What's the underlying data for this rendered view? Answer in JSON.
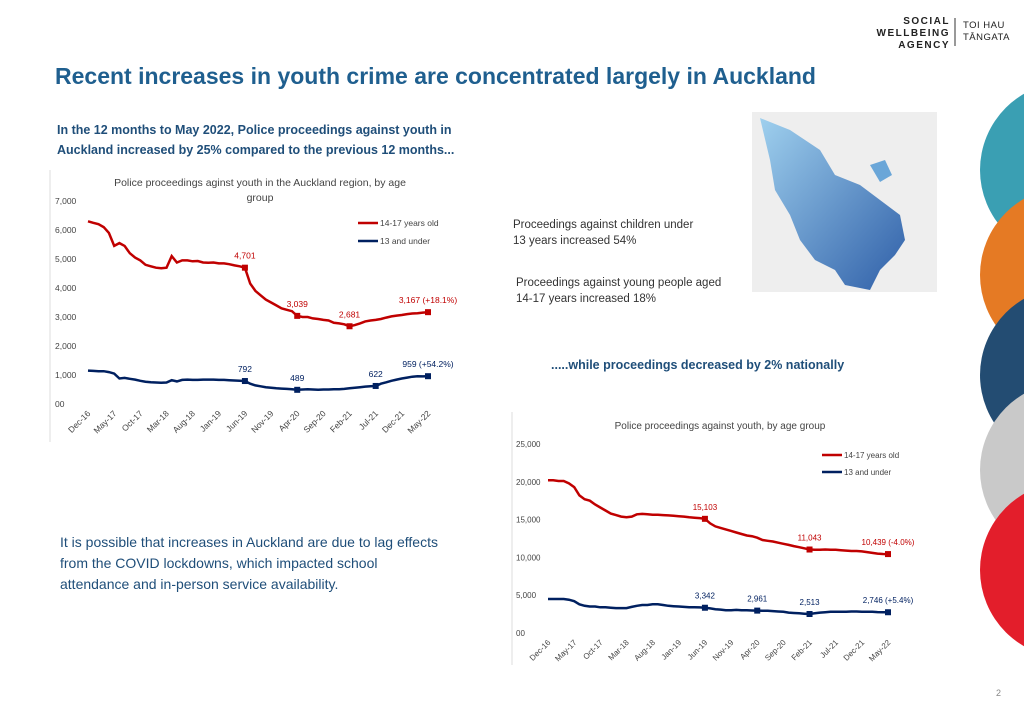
{
  "logo": {
    "name": [
      "SOCIAL",
      "WELLBEING",
      "AGENCY"
    ],
    "maori": [
      "TOI HAU",
      "TĀNGATA"
    ]
  },
  "title": "Recent increases in youth crime are concentrated largely in Auckland",
  "intro": "In the 12 months to May 2022, Police proceedings against youth in Auckland increased by 25% compared to the previous 12 months...",
  "annotations": {
    "children": "Proceedings against children under 13 years increased 54%",
    "young_people": "Proceedings against young people aged 14-17 years increased 18%",
    "national": ".....while proceedings decreased by 2% nationally"
  },
  "note": "It is possible that increases in Auckland are due to lag effects from the COVID lockdowns, which impacted school attendance and in-person service availability.",
  "page_number": "2",
  "chart_data": [
    {
      "type": "line",
      "title": "Police proceedings aginst youth in the Auckland region, by age group",
      "categories": [
        "Dec-16",
        null,
        null,
        null,
        null,
        "May-17",
        null,
        null,
        null,
        null,
        "Oct-17",
        null,
        null,
        null,
        null,
        "Mar-18",
        null,
        null,
        null,
        null,
        "Aug-18",
        null,
        null,
        null,
        null,
        "Jan-19",
        null,
        null,
        null,
        null,
        "Jun-19",
        null,
        null,
        null,
        null,
        "Nov-19",
        null,
        null,
        null,
        null,
        "Apr-20",
        null,
        null,
        null,
        null,
        "Sep-20",
        null,
        null,
        null,
        null,
        "Feb-21",
        null,
        null,
        null,
        null,
        "Jul-21",
        null,
        null,
        null,
        null,
        "Dec-21",
        null,
        null,
        null,
        null,
        "May-22"
      ],
      "ylim": [
        0,
        7000
      ],
      "yticks": [
        {
          "value": 0,
          "label": "00"
        },
        {
          "value": 1000,
          "label": "1,000"
        },
        {
          "value": 2000,
          "label": "2,000"
        },
        {
          "value": 3000,
          "label": "3,000"
        },
        {
          "value": 4000,
          "label": "4,000"
        },
        {
          "value": 5000,
          "label": "5,000"
        },
        {
          "value": 6000,
          "label": "6,000"
        },
        {
          "value": 7000,
          "label": "7,000"
        }
      ],
      "grid": false,
      "series": [
        {
          "name": "14-17 years old",
          "color": "#c00000",
          "values": [
            6300,
            6250,
            6200,
            6100,
            5900,
            5450,
            5550,
            5450,
            5200,
            5050,
            4950,
            4800,
            4750,
            4700,
            4680,
            4700,
            5100,
            4880,
            4950,
            4950,
            4920,
            4930,
            4880,
            4870,
            4880,
            4850,
            4850,
            4820,
            4780,
            4750,
            4701,
            4150,
            3900,
            3750,
            3600,
            3500,
            3400,
            3300,
            3250,
            3200,
            3039,
            3000,
            3000,
            2950,
            2930,
            2900,
            2880,
            2800,
            2780,
            2750,
            2681,
            2720,
            2780,
            2850,
            2880,
            2900,
            2930,
            2980,
            3020,
            3050,
            3070,
            3100,
            3120,
            3130,
            3150,
            3167
          ],
          "value_labels": [
            null,
            null,
            null,
            null,
            null,
            null,
            null,
            null,
            null,
            null,
            null,
            null,
            null,
            null,
            null,
            null,
            null,
            null,
            null,
            null,
            null,
            null,
            null,
            null,
            null,
            null,
            null,
            null,
            null,
            null,
            "4,701",
            null,
            null,
            null,
            null,
            null,
            null,
            null,
            null,
            null,
            "3,039",
            null,
            null,
            null,
            null,
            null,
            null,
            null,
            null,
            null,
            "2,681",
            null,
            null,
            null,
            null,
            null,
            null,
            null,
            null,
            null,
            null,
            null,
            null,
            null,
            null,
            "3,167 (+18.1%)"
          ]
        },
        {
          "name": "13 and under",
          "color": "#002060",
          "values": [
            1150,
            1140,
            1130,
            1130,
            1100,
            1050,
            880,
            900,
            870,
            840,
            800,
            770,
            750,
            740,
            730,
            740,
            820,
            780,
            830,
            840,
            830,
            830,
            840,
            840,
            840,
            830,
            830,
            820,
            810,
            800,
            792,
            700,
            640,
            610,
            580,
            560,
            540,
            530,
            520,
            510,
            489,
            500,
            510,
            500,
            490,
            500,
            500,
            510,
            510,
            520,
            540,
            560,
            580,
            600,
            610,
            622,
            700,
            750,
            800,
            840,
            880,
            910,
            940,
            960,
            950,
            959
          ],
          "value_labels": [
            null,
            null,
            null,
            null,
            null,
            null,
            null,
            null,
            null,
            null,
            null,
            null,
            null,
            null,
            null,
            null,
            null,
            null,
            null,
            null,
            null,
            null,
            null,
            null,
            null,
            null,
            null,
            null,
            null,
            null,
            "792",
            null,
            null,
            null,
            null,
            null,
            null,
            null,
            null,
            null,
            "489",
            null,
            null,
            null,
            null,
            null,
            null,
            null,
            null,
            null,
            null,
            null,
            null,
            null,
            null,
            "622",
            null,
            null,
            null,
            null,
            null,
            null,
            null,
            null,
            null,
            "959 (+54.2%)"
          ]
        }
      ]
    },
    {
      "type": "line",
      "title": "Police proceedings against youth, by age group",
      "categories": [
        "Dec-16",
        null,
        null,
        null,
        null,
        "May-17",
        null,
        null,
        null,
        null,
        "Oct-17",
        null,
        null,
        null,
        null,
        "Mar-18",
        null,
        null,
        null,
        null,
        "Aug-18",
        null,
        null,
        null,
        null,
        "Jan-19",
        null,
        null,
        null,
        null,
        "Jun-19",
        null,
        null,
        null,
        null,
        "Nov-19",
        null,
        null,
        null,
        null,
        "Apr-20",
        null,
        null,
        null,
        null,
        "Sep-20",
        null,
        null,
        null,
        null,
        "Feb-21",
        null,
        null,
        null,
        null,
        "Jul-21",
        null,
        null,
        null,
        null,
        "Dec-21",
        null,
        null,
        null,
        null,
        "May-22"
      ],
      "ylim": [
        0,
        25000
      ],
      "yticks": [
        {
          "value": 0,
          "label": "00"
        },
        {
          "value": 5000,
          "label": "5,000"
        },
        {
          "value": 10000,
          "label": "10,000"
        },
        {
          "value": 15000,
          "label": "15,000"
        },
        {
          "value": 20000,
          "label": "20,000"
        },
        {
          "value": 25000,
          "label": "25,000"
        }
      ],
      "grid": false,
      "series": [
        {
          "name": "14-17 years old",
          "color": "#c00000",
          "values": [
            20200,
            20200,
            20100,
            20100,
            19800,
            19300,
            18200,
            17700,
            17500,
            17000,
            16600,
            16200,
            15800,
            15600,
            15400,
            15300,
            15400,
            15700,
            15750,
            15700,
            15650,
            15650,
            15600,
            15550,
            15500,
            15450,
            15400,
            15300,
            15250,
            15200,
            15103,
            14500,
            14100,
            13900,
            13700,
            13500,
            13300,
            13100,
            12900,
            12800,
            12600,
            12300,
            12200,
            12100,
            11950,
            11800,
            11650,
            11500,
            11350,
            11200,
            11043,
            11000,
            11000,
            11050,
            11000,
            11000,
            10950,
            10900,
            10850,
            10850,
            10800,
            10700,
            10600,
            10500,
            10450,
            10439
          ],
          "value_labels": [
            null,
            null,
            null,
            null,
            null,
            null,
            null,
            null,
            null,
            null,
            null,
            null,
            null,
            null,
            null,
            null,
            null,
            null,
            null,
            null,
            null,
            null,
            null,
            null,
            null,
            null,
            null,
            null,
            null,
            null,
            "15,103",
            null,
            null,
            null,
            null,
            null,
            null,
            null,
            null,
            null,
            null,
            null,
            null,
            null,
            null,
            null,
            null,
            null,
            null,
            null,
            "11,043",
            null,
            null,
            null,
            null,
            null,
            null,
            null,
            null,
            null,
            null,
            null,
            null,
            null,
            null,
            "10,439 (-4.0%)"
          ]
        },
        {
          "name": "13 and under",
          "color": "#002060",
          "values": [
            4500,
            4500,
            4500,
            4500,
            4400,
            4200,
            3800,
            3600,
            3500,
            3500,
            3400,
            3400,
            3350,
            3300,
            3300,
            3300,
            3450,
            3600,
            3700,
            3700,
            3800,
            3800,
            3700,
            3600,
            3550,
            3500,
            3450,
            3400,
            3400,
            3380,
            3342,
            3250,
            3150,
            3100,
            3000,
            3000,
            3050,
            3000,
            3000,
            2980,
            2961,
            2950,
            2950,
            2900,
            2850,
            2800,
            2700,
            2650,
            2600,
            2550,
            2513,
            2600,
            2700,
            2750,
            2800,
            2800,
            2800,
            2800,
            2850,
            2850,
            2800,
            2800,
            2800,
            2770,
            2750,
            2746
          ],
          "value_labels": [
            null,
            null,
            null,
            null,
            null,
            null,
            null,
            null,
            null,
            null,
            null,
            null,
            null,
            null,
            null,
            null,
            null,
            null,
            null,
            null,
            null,
            null,
            null,
            null,
            null,
            null,
            null,
            null,
            null,
            null,
            "3,342",
            null,
            null,
            null,
            null,
            null,
            null,
            null,
            null,
            null,
            "2,961",
            null,
            null,
            null,
            null,
            null,
            null,
            null,
            null,
            null,
            "2,513",
            null,
            null,
            null,
            null,
            null,
            null,
            null,
            null,
            null,
            null,
            null,
            null,
            null,
            null,
            "2,746 (+5.4%)"
          ]
        }
      ]
    }
  ]
}
